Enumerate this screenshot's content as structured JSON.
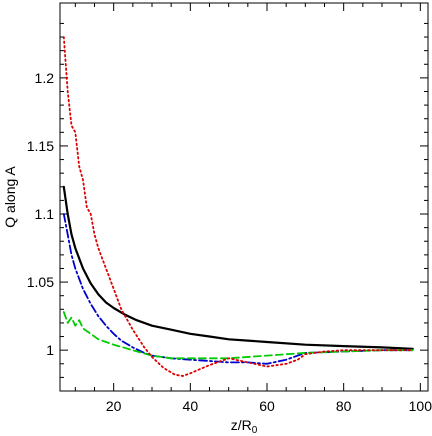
{
  "chart_data": {
    "type": "line",
    "title": "",
    "xlabel": "z/R",
    "xlabel_sub": "0",
    "ylabel": "Q along A",
    "xlim": [
      6,
      102
    ],
    "ylim": [
      0.97,
      1.255
    ],
    "x_ticks": [
      20,
      40,
      60,
      80,
      100
    ],
    "y_ticks": [
      1,
      1.05,
      1.1,
      1.15,
      1.2
    ],
    "y_tick_labels": [
      "1",
      "1.05",
      "1.1",
      "1.15",
      "1.2"
    ],
    "grid": false,
    "legend": "none",
    "series": [
      {
        "color": "#000000",
        "style": "solid",
        "x": [
          7,
          8,
          9,
          10,
          12,
          14,
          16,
          18,
          20,
          23,
          26,
          30,
          35,
          40,
          45,
          50,
          55,
          60,
          70,
          80,
          90,
          98
        ],
        "y": [
          1.12,
          1.1,
          1.085,
          1.075,
          1.06,
          1.049,
          1.041,
          1.035,
          1.031,
          1.026,
          1.022,
          1.018,
          1.015,
          1.012,
          1.01,
          1.008,
          1.007,
          1.006,
          1.004,
          1.003,
          1.002,
          1.001
        ]
      },
      {
        "color": "#0000cc",
        "style": "dash-dot",
        "x": [
          7,
          8,
          9,
          10,
          12,
          14,
          16,
          18,
          20,
          22,
          25,
          28,
          30,
          35,
          40,
          45,
          50,
          55,
          60,
          65,
          70,
          80,
          90,
          98
        ],
        "y": [
          1.1,
          1.085,
          1.07,
          1.06,
          1.045,
          1.034,
          1.025,
          1.018,
          1.012,
          1.007,
          1.002,
          0.998,
          0.996,
          0.994,
          0.993,
          0.992,
          0.991,
          0.991,
          0.99,
          0.993,
          0.998,
          0.999,
          1.0,
          1.0
        ]
      },
      {
        "color": "#00cc00",
        "style": "dashed",
        "x": [
          7,
          8,
          9,
          10,
          11,
          12,
          14,
          16,
          18,
          20,
          25,
          30,
          35,
          40,
          50,
          60,
          70,
          80,
          90,
          98
        ],
        "y": [
          1.028,
          1.02,
          1.024,
          1.018,
          1.022,
          1.016,
          1.012,
          1.008,
          1.006,
          1.004,
          1.0,
          0.996,
          0.994,
          0.994,
          0.994,
          0.996,
          0.998,
          0.999,
          1.0,
          1.0
        ]
      },
      {
        "color": "#dd0000",
        "style": "dotted",
        "x": [
          7,
          8,
          9,
          10,
          11,
          12,
          13,
          14,
          15,
          16,
          18,
          20,
          22,
          25,
          28,
          30,
          33,
          36,
          38,
          40,
          45,
          50,
          55,
          60,
          65,
          68,
          70,
          75,
          80,
          90,
          98
        ],
        "y": [
          1.23,
          1.19,
          1.165,
          1.16,
          1.135,
          1.125,
          1.105,
          1.1,
          1.085,
          1.075,
          1.06,
          1.045,
          1.03,
          1.015,
          1.002,
          0.995,
          0.987,
          0.982,
          0.981,
          0.983,
          0.989,
          0.994,
          0.991,
          0.988,
          0.99,
          0.993,
          0.997,
          0.999,
          1.0,
          1.0,
          1.0
        ]
      }
    ]
  }
}
